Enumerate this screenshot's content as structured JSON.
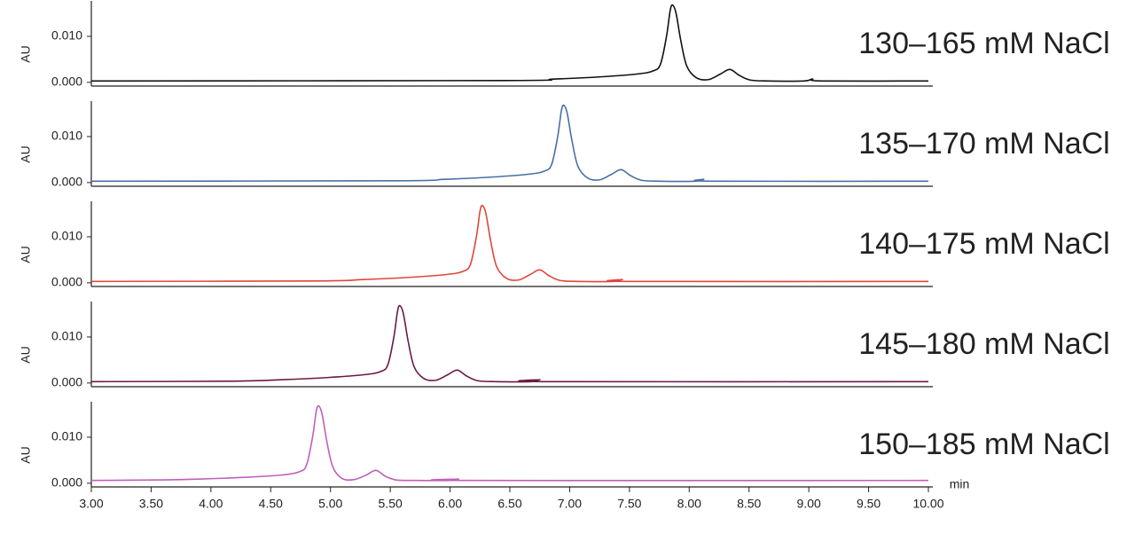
{
  "chart_data": [
    {
      "type": "line",
      "title": "130–165 mM NaCl",
      "ylabel": "AU",
      "color": "#111111",
      "xlim": [
        3,
        10
      ],
      "ylim": [
        -0.0008,
        0.0177
      ],
      "yticks": [
        {
          "value": 0,
          "label": "0.000"
        },
        {
          "value": 0.01,
          "label": "0.010"
        }
      ],
      "x": [
        3.0,
        6.46,
        6.86,
        7.26,
        7.56,
        7.7,
        7.76,
        7.81,
        7.84,
        7.86,
        7.89,
        7.93,
        7.98,
        8.06,
        8.16,
        8.26,
        8.34,
        8.42,
        8.51,
        8.66,
        8.96,
        9.03,
        9.11,
        10.0
      ],
      "values": [
        0.0003,
        0.0004,
        0.0007,
        0.0012,
        0.0018,
        0.0025,
        0.004,
        0.01,
        0.0155,
        0.0168,
        0.015,
        0.009,
        0.0035,
        0.001,
        0.0006,
        0.0018,
        0.0028,
        0.0015,
        0.0005,
        0.0003,
        0.0003,
        0.0007,
        0.0003,
        0.0003
      ]
    },
    {
      "type": "line",
      "title": "135–170 mM NaCl",
      "ylabel": "AU",
      "color": "#4a6fa5",
      "xlim": [
        3,
        10
      ],
      "ylim": [
        -0.0008,
        0.0177
      ],
      "yticks": [
        {
          "value": 0,
          "label": "0.000"
        },
        {
          "value": 0.01,
          "label": "0.010"
        }
      ],
      "x": [
        3.0,
        5.55,
        5.95,
        6.35,
        6.65,
        6.79,
        6.85,
        6.9,
        6.93,
        6.95,
        6.98,
        7.02,
        7.07,
        7.15,
        7.25,
        7.35,
        7.43,
        7.51,
        7.6,
        7.75,
        8.05,
        8.12,
        8.2,
        10.0
      ],
      "values": [
        0.0003,
        0.0004,
        0.0007,
        0.0012,
        0.0018,
        0.0025,
        0.004,
        0.01,
        0.0155,
        0.0168,
        0.015,
        0.009,
        0.0035,
        0.001,
        0.0006,
        0.0018,
        0.0028,
        0.0015,
        0.0005,
        0.0003,
        0.0003,
        0.0007,
        0.0003,
        0.0003
      ]
    },
    {
      "type": "line",
      "title": "140–175 mM NaCl",
      "ylabel": "AU",
      "color": "#e0463a",
      "xlim": [
        3,
        10
      ],
      "ylim": [
        -0.0008,
        0.0177
      ],
      "yticks": [
        {
          "value": 0,
          "label": "0.000"
        },
        {
          "value": 0.01,
          "label": "0.010"
        }
      ],
      "x": [
        3.0,
        4.87,
        5.27,
        5.67,
        5.97,
        6.11,
        6.17,
        6.22,
        6.25,
        6.27,
        6.3,
        6.34,
        6.39,
        6.47,
        6.57,
        6.67,
        6.75,
        6.83,
        6.92,
        7.07,
        7.37,
        7.44,
        7.52,
        10.0
      ],
      "values": [
        0.0003,
        0.0004,
        0.0007,
        0.0012,
        0.0018,
        0.0025,
        0.004,
        0.01,
        0.0155,
        0.0168,
        0.015,
        0.009,
        0.0035,
        0.001,
        0.0006,
        0.0018,
        0.0028,
        0.0015,
        0.0005,
        0.0003,
        0.0003,
        0.0007,
        0.0003,
        0.0003
      ]
    },
    {
      "type": "line",
      "title": "145–180 mM NaCl",
      "ylabel": "AU",
      "color": "#6b1a45",
      "xlim": [
        3,
        10
      ],
      "ylim": [
        -0.0008,
        0.0177
      ],
      "yticks": [
        {
          "value": 0,
          "label": "0.000"
        },
        {
          "value": 0.01,
          "label": "0.010"
        }
      ],
      "x": [
        3.0,
        4.18,
        4.58,
        4.98,
        5.28,
        5.42,
        5.48,
        5.53,
        5.56,
        5.58,
        5.61,
        5.65,
        5.7,
        5.78,
        5.88,
        5.98,
        6.06,
        6.14,
        6.23,
        6.38,
        6.68,
        6.75,
        6.83,
        10.0
      ],
      "values": [
        0.0003,
        0.0004,
        0.0007,
        0.0012,
        0.0018,
        0.0025,
        0.004,
        0.01,
        0.0155,
        0.0168,
        0.015,
        0.009,
        0.0035,
        0.001,
        0.0006,
        0.0018,
        0.0028,
        0.0015,
        0.0005,
        0.0003,
        0.0003,
        0.0007,
        0.0003,
        0.0003
      ]
    },
    {
      "type": "line",
      "title": "150–185 mM NaCl",
      "ylabel": "AU",
      "color": "#c060b8",
      "xlabel": "min",
      "xlim": [
        3,
        10
      ],
      "ylim": [
        -0.0008,
        0.0177
      ],
      "yticks": [
        {
          "value": 0,
          "label": "0.000"
        },
        {
          "value": 0.01,
          "label": "0.010"
        }
      ],
      "xticks": [
        {
          "value": 3,
          "label": "3.00"
        },
        {
          "value": 3.5,
          "label": "3.50"
        },
        {
          "value": 4,
          "label": "4.00"
        },
        {
          "value": 4.5,
          "label": "4.50"
        },
        {
          "value": 5,
          "label": "5.00"
        },
        {
          "value": 5.5,
          "label": "5.50"
        },
        {
          "value": 6,
          "label": "6.00"
        },
        {
          "value": 6.5,
          "label": "6.50"
        },
        {
          "value": 7,
          "label": "7.00"
        },
        {
          "value": 7.5,
          "label": "7.50"
        },
        {
          "value": 8,
          "label": "8.00"
        },
        {
          "value": 8.5,
          "label": "8.50"
        },
        {
          "value": 9,
          "label": "9.00"
        },
        {
          "value": 9.5,
          "label": "9.50"
        },
        {
          "value": 10,
          "label": "10.00"
        }
      ],
      "x": [
        3.0,
        3.5,
        3.9,
        4.3,
        4.6,
        4.74,
        4.8,
        4.85,
        4.88,
        4.9,
        4.93,
        4.97,
        5.02,
        5.1,
        5.2,
        5.3,
        5.38,
        5.46,
        5.55,
        5.7,
        6.0,
        6.07,
        6.15,
        10.0
      ],
      "values": [
        0.0006,
        0.0007,
        0.0009,
        0.0013,
        0.0018,
        0.0025,
        0.004,
        0.01,
        0.0155,
        0.0168,
        0.015,
        0.009,
        0.0035,
        0.001,
        0.0008,
        0.0018,
        0.0028,
        0.0015,
        0.0007,
        0.0006,
        0.0006,
        0.0009,
        0.0006,
        0.0006
      ]
    }
  ]
}
